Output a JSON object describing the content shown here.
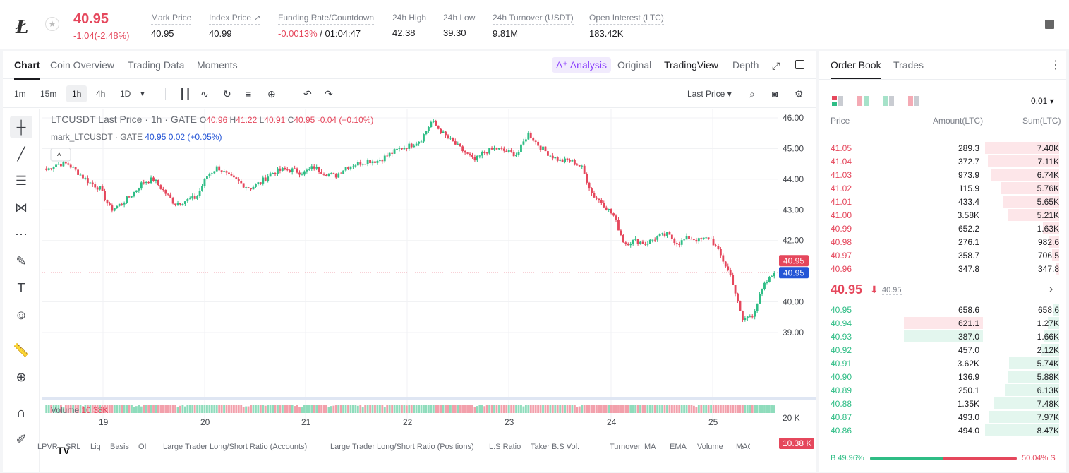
{
  "header": {
    "coin_logo": "Ł",
    "favorite_icon": "star-icon",
    "last_price": "40.95",
    "change": "-1.04(-2.48%)",
    "stats": [
      {
        "label": "Mark Price",
        "value": "40.95"
      },
      {
        "label": "Index Price ↗",
        "value": "40.99"
      },
      {
        "label": "Funding Rate/Countdown",
        "value_red": "-0.0013%",
        "value": " / 01:04:47"
      },
      {
        "label": "24h High",
        "value": "42.38"
      },
      {
        "label": "24h Low",
        "value": "39.30"
      },
      {
        "label": "24h Turnover (USDT)",
        "value": "9.81M"
      },
      {
        "label": "Open Interest (LTC)",
        "value": "183.42K"
      }
    ]
  },
  "chart_tabs": [
    "Chart",
    "Coin Overview",
    "Trading Data",
    "Moments"
  ],
  "chart_views": {
    "ai": "A⁺ Analysis",
    "original": "Original",
    "tradingview": "TradingView",
    "depth": "Depth"
  },
  "intervals": [
    "1m",
    "15m",
    "1h",
    "4h",
    "1D"
  ],
  "selected_interval": "1h",
  "price_type": "Last Price",
  "legend": {
    "title": "LTCUSDT Last Price · 1h · GATE",
    "o_label": "O",
    "o": "40.96",
    "h_label": "H",
    "h": "41.22",
    "l_label": "L",
    "l": "40.91",
    "c_label": "C",
    "c": "40.95",
    "chg": "-0.04 (−0.10%)",
    "mark_title": "mark_LTCUSDT · GATE",
    "mark_val": "40.95",
    "mark_chg": "0.02 (+0.05%)",
    "collapse": "^"
  },
  "volume_legend": {
    "label": "Volume",
    "value": "10.38K",
    "badge": "10.38 K"
  },
  "price_badges": {
    "last": "40.95",
    "mark": "40.95"
  },
  "indicators": [
    "LPVR",
    "SRL",
    "Liq",
    "Basis",
    "OI",
    "Large Trader Long/Short Ratio (Accounts)",
    "Large Trader Long/Short Ratio (Positions)",
    "L.S Ratio",
    "Taker B.S Vol.",
    "Turnover",
    "MA",
    "EMA",
    "Volume",
    "MACD"
  ],
  "chart_data": {
    "type": "candlestick",
    "symbol": "LTCUSDT",
    "interval": "1h",
    "y_ticks": [
      "46.00",
      "45.00",
      "44.00",
      "43.00",
      "42.00",
      "40.00",
      "39.00"
    ],
    "x_ticks": [
      "19",
      "20",
      "21",
      "22",
      "23",
      "24",
      "25"
    ],
    "volume_ticks": [
      "20 K"
    ],
    "ylim": [
      38.7,
      46.3
    ],
    "close_path": [
      44.3,
      44.5,
      44.5,
      44.2,
      43.9,
      43.7,
      43.0,
      43.2,
      43.5,
      43.9,
      44.0,
      43.6,
      43.2,
      43.3,
      43.4,
      44.1,
      44.4,
      44.1,
      43.9,
      43.7,
      43.9,
      44.2,
      44.3,
      44.3,
      44.2,
      44.4,
      44.2,
      44.1,
      44.4,
      44.5,
      44.6,
      44.6,
      44.8,
      45.0,
      45.1,
      45.3,
      45.9,
      45.5,
      45.2,
      44.9,
      44.6,
      44.9,
      45.0,
      44.9,
      44.8,
      45.5,
      45.1,
      44.8,
      44.6,
      44.6,
      44.4,
      43.5,
      43.2,
      42.8,
      41.9,
      42.0,
      41.9,
      42.1,
      42.2,
      41.9,
      42.1,
      42.0,
      42.1,
      41.5,
      40.8,
      39.4,
      39.6,
      40.5,
      40.95
    ],
    "volume_path": [
      0.4,
      0.3,
      0.5,
      0.3,
      0.4,
      0.5,
      0.3,
      0.4,
      0.3,
      0.5,
      0.3,
      0.4,
      0.3,
      0.5,
      0.4,
      0.6,
      0.3,
      0.4,
      0.3,
      0.5,
      0.3,
      0.4,
      0.6,
      0.3,
      0.4,
      0.5,
      0.3,
      0.4,
      0.5,
      0.3,
      0.4,
      0.3,
      0.5,
      0.4,
      0.6,
      0.5,
      0.7,
      0.4,
      0.5,
      0.4,
      0.3,
      0.4,
      0.5,
      0.4,
      0.3,
      0.5,
      0.4,
      0.5,
      0.4,
      0.3,
      0.5,
      0.4,
      0.5,
      0.6,
      0.5,
      0.4,
      0.3,
      0.4,
      0.5,
      0.4,
      0.3,
      0.5,
      0.4,
      0.6,
      0.8,
      0.9,
      0.7,
      0.5,
      0.4
    ]
  },
  "orderbook": {
    "tabs": [
      "Order Book",
      "Trades"
    ],
    "tick_size": "0.01",
    "headers": {
      "price": "Price",
      "amount": "Amount(LTC)",
      "sum": "Sum(LTC)"
    },
    "asks": [
      {
        "price": "41.05",
        "amount": "289.3",
        "sum": "7.40K",
        "depth": 1.0
      },
      {
        "price": "41.04",
        "amount": "372.7",
        "sum": "7.11K",
        "depth": 0.96
      },
      {
        "price": "41.03",
        "amount": "973.9",
        "sum": "6.74K",
        "depth": 0.91
      },
      {
        "price": "41.02",
        "amount": "115.9",
        "sum": "5.76K",
        "depth": 0.78
      },
      {
        "price": "41.01",
        "amount": "433.4",
        "sum": "5.65K",
        "depth": 0.76
      },
      {
        "price": "41.00",
        "amount": "3.58K",
        "sum": "5.21K",
        "depth": 0.7
      },
      {
        "price": "40.99",
        "amount": "652.2",
        "sum": "1.63K",
        "depth": 0.22
      },
      {
        "price": "40.98",
        "amount": "276.1",
        "sum": "982.6",
        "depth": 0.13
      },
      {
        "price": "40.97",
        "amount": "358.7",
        "sum": "706.5",
        "depth": 0.1
      },
      {
        "price": "40.96",
        "amount": "347.8",
        "sum": "347.8",
        "depth": 0.05
      }
    ],
    "mid": {
      "price": "40.95",
      "arrow": "⬇",
      "mark": "40.95",
      "chevron": "›"
    },
    "bids": [
      {
        "price": "40.95",
        "amount": "658.6",
        "sum": "658.6",
        "depth": 0.08
      },
      {
        "price": "40.94",
        "amount": "621.1",
        "sum": "1.27K",
        "depth": 0.15,
        "highlight": "ask"
      },
      {
        "price": "40.93",
        "amount": "387.0",
        "sum": "1.66K",
        "depth": 0.2,
        "highlight": "bid"
      },
      {
        "price": "40.92",
        "amount": "457.0",
        "sum": "2.12K",
        "depth": 0.25
      },
      {
        "price": "40.91",
        "amount": "3.62K",
        "sum": "5.74K",
        "depth": 0.68
      },
      {
        "price": "40.90",
        "amount": "136.9",
        "sum": "5.88K",
        "depth": 0.69
      },
      {
        "price": "40.89",
        "amount": "250.1",
        "sum": "6.13K",
        "depth": 0.72
      },
      {
        "price": "40.88",
        "amount": "1.35K",
        "sum": "7.48K",
        "depth": 0.88
      },
      {
        "price": "40.87",
        "amount": "493.0",
        "sum": "7.97K",
        "depth": 0.94
      },
      {
        "price": "40.86",
        "amount": "494.0",
        "sum": "8.47K",
        "depth": 1.0
      }
    ],
    "buy_ratio": "B 49.96%",
    "sell_ratio": "50.04% S",
    "buy_fraction": 0.4996
  },
  "colors": {
    "up": "#2ebd85",
    "down": "#e5475c",
    "accent": "#8a3ffc",
    "mark_blue": "#2455d6"
  }
}
